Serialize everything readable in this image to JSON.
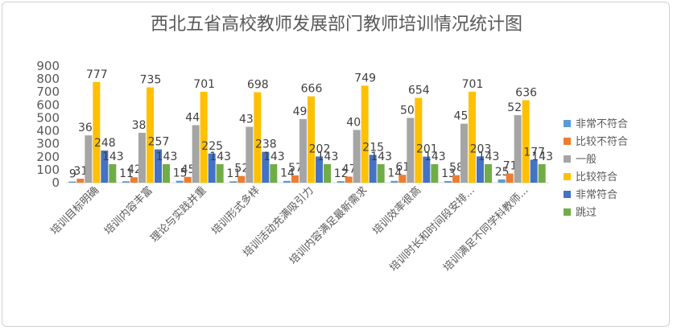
{
  "chart_data": {
    "type": "bar",
    "title": "西北五省高校教师发展部门教师培训情况统计图",
    "xlabel": "",
    "ylabel": "",
    "ylim": [
      0,
      900
    ],
    "yticks": [
      0,
      100,
      200,
      300,
      400,
      500,
      600,
      700,
      800,
      900
    ],
    "grid": false,
    "legend_position": "right",
    "categories": [
      "培训目标明确",
      "培训内容丰富",
      "理论与实践并重",
      "培训形式多样",
      "培训活动充满吸引力",
      "培训内容满足最新需求",
      "培训效率很高",
      "培训时长和时间段安排...",
      "培训满足不同学科教师..."
    ],
    "series": [
      {
        "name": "非常不符合",
        "color": "#5b9bd5",
        "values": [
          9,
          11,
          15,
          11,
          14,
          12,
          14,
          13,
          25
        ]
      },
      {
        "name": "比较不符合",
        "color": "#ed7d31",
        "values": [
          31,
          42,
          45,
          52,
          57,
          47,
          61,
          58,
          71
        ]
      },
      {
        "name": "一般",
        "color": "#a5a5a5",
        "values": [
          365,
          385,
          444,
          431,
          491,
          407,
          500,
          455,
          521
        ]
      },
      {
        "name": "比较符合",
        "color": "#ffc000",
        "values": [
          777,
          735,
          701,
          698,
          666,
          749,
          654,
          701,
          636
        ]
      },
      {
        "name": "非常符合",
        "color": "#4472c4",
        "values": [
          248,
          257,
          225,
          238,
          202,
          215,
          201,
          203,
          177
        ]
      },
      {
        "name": "跳过",
        "color": "#70ad47",
        "values": [
          143,
          143,
          143,
          143,
          143,
          143,
          143,
          143,
          143
        ]
      }
    ]
  }
}
